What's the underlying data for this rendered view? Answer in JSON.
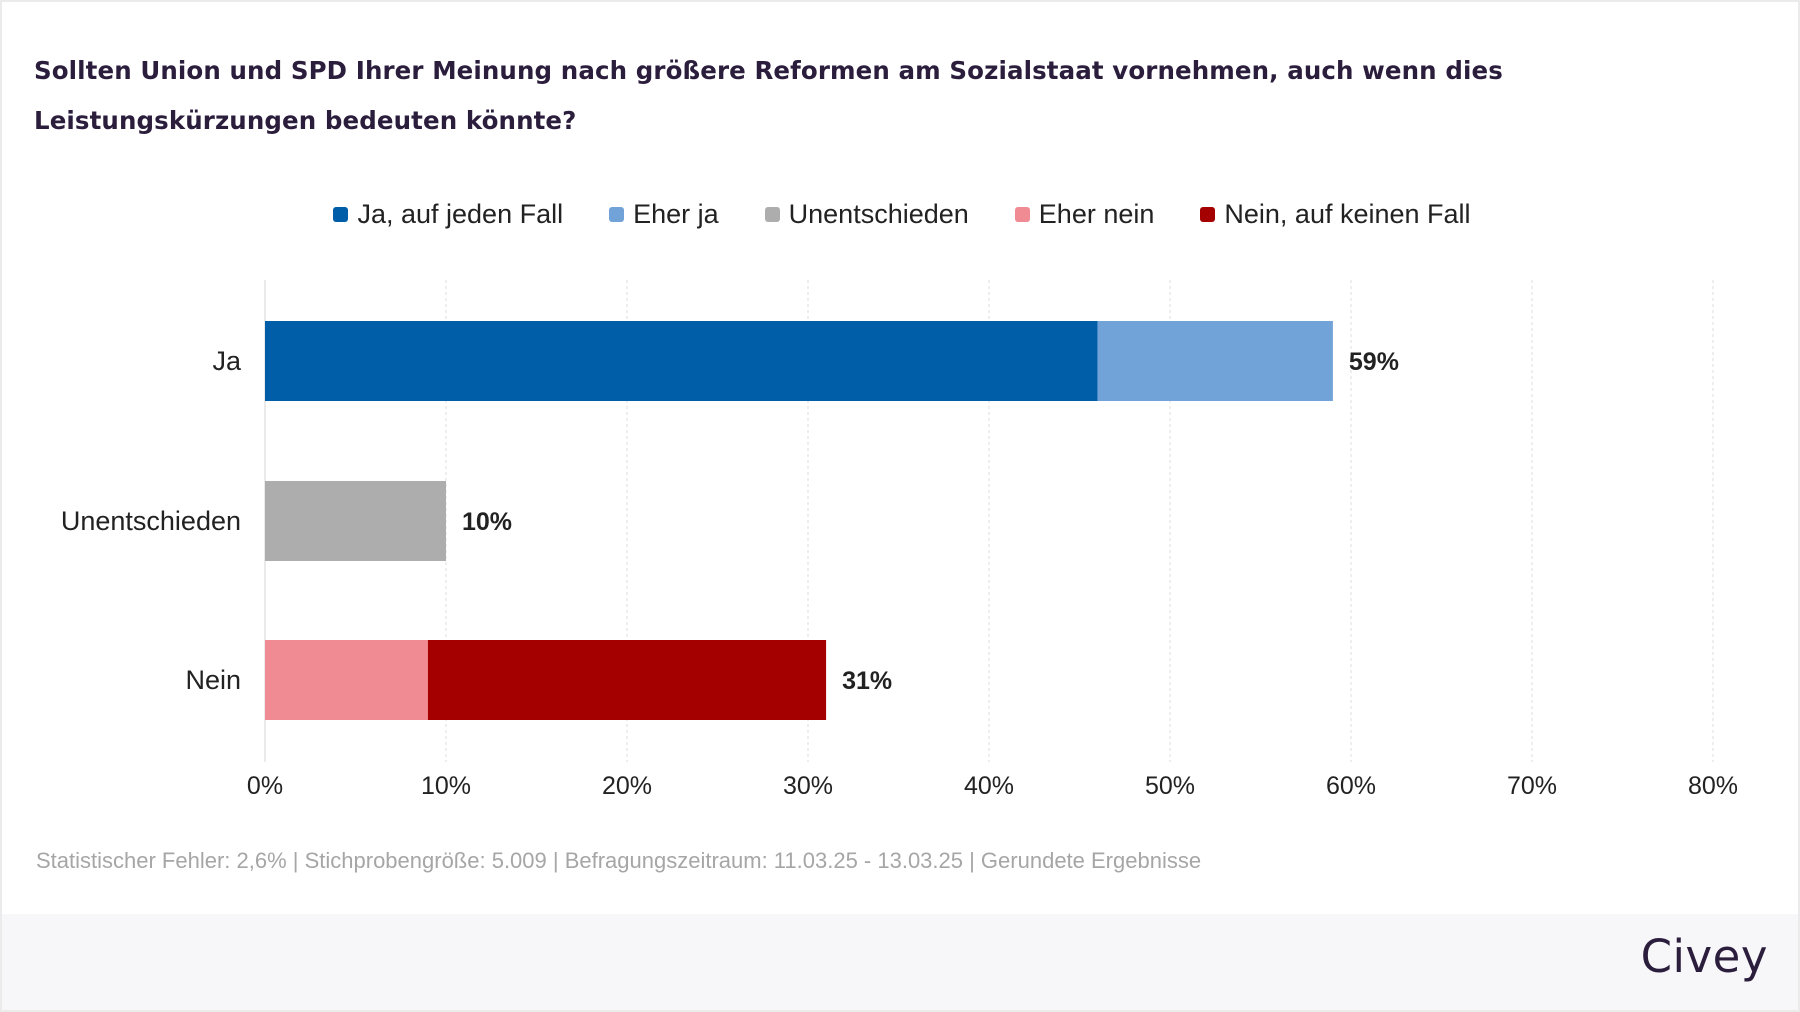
{
  "chart_data": {
    "type": "bar",
    "orientation": "horizontal",
    "stacked": true,
    "title": "Sollten Union und SPD Ihrer Meinung nach größere Reformen am Sozialstaat vornehmen, auch wenn dies Leistungskürzungen bedeuten könnte?",
    "categories": [
      "Ja",
      "Unentschieden",
      "Nein"
    ],
    "series": [
      {
        "name": "Ja, auf jeden Fall",
        "color": "#005ea8",
        "values": [
          46,
          0,
          0
        ]
      },
      {
        "name": "Eher ja",
        "color": "#72a3d8",
        "values": [
          13,
          0,
          0
        ]
      },
      {
        "name": "Unentschieden",
        "color": "#adadad",
        "values": [
          0,
          10,
          0
        ]
      },
      {
        "name": "Eher nein",
        "color": "#f08a93",
        "values": [
          0,
          0,
          9
        ]
      },
      {
        "name": "Nein, auf keinen Fall",
        "color": "#a50000",
        "values": [
          0,
          0,
          22
        ]
      }
    ],
    "totals": [
      "59%",
      "10%",
      "31%"
    ],
    "xlim": [
      0,
      80
    ],
    "xticks": [
      "0%",
      "10%",
      "20%",
      "30%",
      "40%",
      "50%",
      "60%",
      "70%",
      "80%"
    ],
    "grid": true,
    "legend": "top-center"
  },
  "footnote": "Statistischer Fehler: 2,6% | Stichprobengröße: 5.009 | Befragungszeitraum: 11.03.25 - 13.03.25 | Gerundete Ergebnisse",
  "brand": "Civey"
}
